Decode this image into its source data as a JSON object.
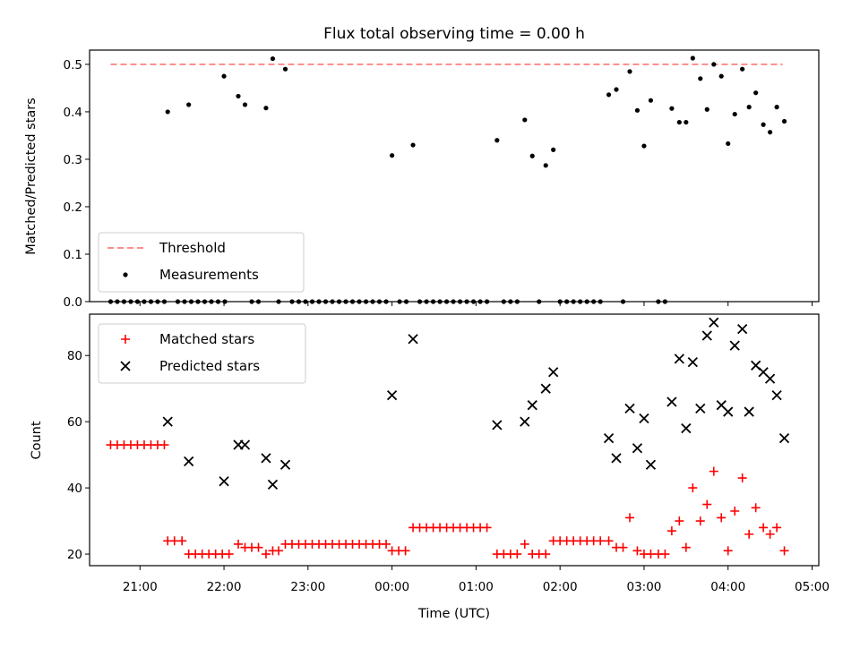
{
  "title": "Flux total observing time = 0.00 h",
  "chart_data": [
    {
      "type": "scatter",
      "ylabel": "Matched/Predicted stars",
      "xlabel": "",
      "ylim": [
        0,
        0.53
      ],
      "yticks": [
        "0.0",
        "0.1",
        "0.2",
        "0.3",
        "0.4",
        "0.5"
      ],
      "ytick_values": [
        0,
        0.1,
        0.2,
        0.3,
        0.4,
        0.5
      ],
      "xlim": [
        20.4,
        29.08
      ],
      "legend_position": "lower-left",
      "threshold": {
        "name": "Threshold",
        "value": 0.5,
        "x": [
          20.65,
          28.65
        ],
        "color": "#ff7f7f",
        "style": "dashed"
      },
      "series": [
        {
          "name": "Measurements",
          "color": "#000000",
          "marker": "dot",
          "points": [
            [
              20.65,
              0
            ],
            [
              20.73,
              0
            ],
            [
              20.81,
              0
            ],
            [
              20.89,
              0
            ],
            [
              20.97,
              0
            ],
            [
              21.05,
              0
            ],
            [
              21.13,
              0
            ],
            [
              21.21,
              0
            ],
            [
              21.29,
              0
            ],
            [
              21.33,
              0.4
            ],
            [
              21.45,
              0
            ],
            [
              21.53,
              0
            ],
            [
              21.58,
              0.415
            ],
            [
              21.61,
              0
            ],
            [
              21.69,
              0
            ],
            [
              21.77,
              0
            ],
            [
              21.85,
              0
            ],
            [
              21.93,
              0
            ],
            [
              22.0,
              0.475
            ],
            [
              22.01,
              0
            ],
            [
              22.17,
              0.433
            ],
            [
              22.25,
              0.415
            ],
            [
              22.33,
              0
            ],
            [
              22.41,
              0
            ],
            [
              22.5,
              0.408
            ],
            [
              22.58,
              0.512
            ],
            [
              22.73,
              0.49
            ],
            [
              22.65,
              0
            ],
            [
              22.81,
              0
            ],
            [
              22.89,
              0
            ],
            [
              22.97,
              0
            ],
            [
              23.05,
              0
            ],
            [
              23.13,
              0
            ],
            [
              23.21,
              0
            ],
            [
              23.29,
              0
            ],
            [
              23.37,
              0
            ],
            [
              23.45,
              0
            ],
            [
              23.53,
              0
            ],
            [
              23.61,
              0
            ],
            [
              23.69,
              0
            ],
            [
              23.77,
              0
            ],
            [
              23.85,
              0
            ],
            [
              23.93,
              0
            ],
            [
              24.0,
              0.308
            ],
            [
              24.09,
              0
            ],
            [
              24.17,
              0
            ],
            [
              24.25,
              0.33
            ],
            [
              24.33,
              0
            ],
            [
              24.41,
              0
            ],
            [
              24.49,
              0
            ],
            [
              24.57,
              0
            ],
            [
              24.65,
              0
            ],
            [
              24.73,
              0
            ],
            [
              24.81,
              0
            ],
            [
              24.89,
              0
            ],
            [
              24.97,
              0
            ],
            [
              25.05,
              0
            ],
            [
              25.13,
              0
            ],
            [
              25.25,
              0.34
            ],
            [
              25.33,
              0
            ],
            [
              25.41,
              0
            ],
            [
              25.49,
              0
            ],
            [
              25.58,
              0.383
            ],
            [
              25.67,
              0.307
            ],
            [
              25.75,
              0
            ],
            [
              25.83,
              0.287
            ],
            [
              25.92,
              0.32
            ],
            [
              26.0,
              0
            ],
            [
              26.08,
              0
            ],
            [
              26.16,
              0
            ],
            [
              26.24,
              0
            ],
            [
              26.32,
              0
            ],
            [
              26.4,
              0
            ],
            [
              26.48,
              0
            ],
            [
              26.58,
              0.436
            ],
            [
              26.67,
              0.447
            ],
            [
              26.75,
              0
            ],
            [
              26.83,
              0.485
            ],
            [
              26.92,
              0.403
            ],
            [
              27.0,
              0.328
            ],
            [
              27.08,
              0.424
            ],
            [
              27.17,
              0
            ],
            [
              27.25,
              0
            ],
            [
              27.33,
              0.407
            ],
            [
              27.42,
              0.378
            ],
            [
              27.5,
              0.378
            ],
            [
              27.58,
              0.513
            ],
            [
              27.67,
              0.47
            ],
            [
              27.75,
              0.405
            ],
            [
              27.83,
              0.5
            ],
            [
              27.92,
              0.475
            ],
            [
              28.0,
              0.333
            ],
            [
              28.08,
              0.395
            ],
            [
              28.17,
              0.49
            ],
            [
              28.25,
              0.41
            ],
            [
              28.33,
              0.44
            ],
            [
              28.42,
              0.373
            ],
            [
              28.5,
              0.357
            ],
            [
              28.58,
              0.41
            ],
            [
              28.67,
              0.38
            ]
          ]
        }
      ]
    },
    {
      "type": "scatter",
      "ylabel": "Count",
      "xlabel": "Time (UTC)",
      "ylim": [
        16.5,
        92.5
      ],
      "yticks": [
        "20",
        "40",
        "60",
        "80"
      ],
      "ytick_values": [
        20,
        40,
        60,
        80
      ],
      "xlim": [
        20.4,
        29.08
      ],
      "xticks": [
        "21:00",
        "22:00",
        "23:00",
        "00:00",
        "01:00",
        "02:00",
        "03:00",
        "04:00",
        "05:00"
      ],
      "xtick_values": [
        21,
        22,
        23,
        24,
        25,
        26,
        27,
        28,
        29
      ],
      "legend_position": "upper-left",
      "series": [
        {
          "name": "Matched stars",
          "color": "#ff0000",
          "marker": "plus",
          "points": [
            [
              20.65,
              53
            ],
            [
              20.73,
              53
            ],
            [
              20.81,
              53
            ],
            [
              20.89,
              53
            ],
            [
              20.97,
              53
            ],
            [
              21.05,
              53
            ],
            [
              21.13,
              53
            ],
            [
              21.21,
              53
            ],
            [
              21.29,
              53
            ],
            [
              21.33,
              24
            ],
            [
              21.41,
              24
            ],
            [
              21.5,
              24
            ],
            [
              21.58,
              20
            ],
            [
              21.66,
              20
            ],
            [
              21.74,
              20
            ],
            [
              21.82,
              20
            ],
            [
              21.9,
              20
            ],
            [
              21.98,
              20
            ],
            [
              22.06,
              20
            ],
            [
              22.17,
              23
            ],
            [
              22.25,
              22
            ],
            [
              22.33,
              22
            ],
            [
              22.41,
              22
            ],
            [
              22.5,
              20
            ],
            [
              22.58,
              21
            ],
            [
              22.65,
              21
            ],
            [
              22.73,
              23
            ],
            [
              22.81,
              23
            ],
            [
              22.89,
              23
            ],
            [
              22.97,
              23
            ],
            [
              23.05,
              23
            ],
            [
              23.13,
              23
            ],
            [
              23.21,
              23
            ],
            [
              23.29,
              23
            ],
            [
              23.37,
              23
            ],
            [
              23.45,
              23
            ],
            [
              23.53,
              23
            ],
            [
              23.61,
              23
            ],
            [
              23.69,
              23
            ],
            [
              23.77,
              23
            ],
            [
              23.85,
              23
            ],
            [
              23.93,
              23
            ],
            [
              24.0,
              21
            ],
            [
              24.08,
              21
            ],
            [
              24.16,
              21
            ],
            [
              24.25,
              28
            ],
            [
              24.33,
              28
            ],
            [
              24.41,
              28
            ],
            [
              24.49,
              28
            ],
            [
              24.57,
              28
            ],
            [
              24.65,
              28
            ],
            [
              24.73,
              28
            ],
            [
              24.81,
              28
            ],
            [
              24.89,
              28
            ],
            [
              24.97,
              28
            ],
            [
              25.05,
              28
            ],
            [
              25.13,
              28
            ],
            [
              25.25,
              20
            ],
            [
              25.33,
              20
            ],
            [
              25.41,
              20
            ],
            [
              25.49,
              20
            ],
            [
              25.58,
              23
            ],
            [
              25.67,
              20
            ],
            [
              25.75,
              20
            ],
            [
              25.83,
              20
            ],
            [
              25.92,
              24
            ],
            [
              26.0,
              24
            ],
            [
              26.08,
              24
            ],
            [
              26.16,
              24
            ],
            [
              26.24,
              24
            ],
            [
              26.32,
              24
            ],
            [
              26.4,
              24
            ],
            [
              26.48,
              24
            ],
            [
              26.58,
              24
            ],
            [
              26.67,
              22
            ],
            [
              26.75,
              22
            ],
            [
              26.83,
              31
            ],
            [
              26.92,
              21
            ],
            [
              27.0,
              20
            ],
            [
              27.08,
              20
            ],
            [
              27.17,
              20
            ],
            [
              27.25,
              20
            ],
            [
              27.33,
              27
            ],
            [
              27.42,
              30
            ],
            [
              27.5,
              22
            ],
            [
              27.58,
              40
            ],
            [
              27.67,
              30
            ],
            [
              27.75,
              35
            ],
            [
              27.83,
              45
            ],
            [
              27.92,
              31
            ],
            [
              28.0,
              21
            ],
            [
              28.08,
              33
            ],
            [
              28.17,
              43
            ],
            [
              28.25,
              26
            ],
            [
              28.33,
              34
            ],
            [
              28.42,
              28
            ],
            [
              28.5,
              26
            ],
            [
              28.58,
              28
            ],
            [
              28.67,
              21
            ]
          ]
        },
        {
          "name": "Predicted stars",
          "color": "#000000",
          "marker": "x",
          "points": [
            [
              21.33,
              60
            ],
            [
              21.58,
              48
            ],
            [
              22.0,
              42
            ],
            [
              22.17,
              53
            ],
            [
              22.25,
              53
            ],
            [
              22.5,
              49
            ],
            [
              22.58,
              41
            ],
            [
              22.73,
              47
            ],
            [
              24.0,
              68
            ],
            [
              24.25,
              85
            ],
            [
              25.25,
              59
            ],
            [
              25.58,
              60
            ],
            [
              25.67,
              65
            ],
            [
              25.83,
              70
            ],
            [
              25.92,
              75
            ],
            [
              26.58,
              55
            ],
            [
              26.67,
              49
            ],
            [
              26.83,
              64
            ],
            [
              26.92,
              52
            ],
            [
              27.0,
              61
            ],
            [
              27.08,
              47
            ],
            [
              27.33,
              66
            ],
            [
              27.42,
              79
            ],
            [
              27.5,
              58
            ],
            [
              27.58,
              78
            ],
            [
              27.67,
              64
            ],
            [
              27.75,
              86
            ],
            [
              27.83,
              90
            ],
            [
              27.92,
              65
            ],
            [
              28.0,
              63
            ],
            [
              28.08,
              83
            ],
            [
              28.17,
              88
            ],
            [
              28.25,
              63
            ],
            [
              28.33,
              77
            ],
            [
              28.42,
              75
            ],
            [
              28.5,
              73
            ],
            [
              28.58,
              68
            ],
            [
              28.67,
              55
            ]
          ]
        }
      ]
    }
  ]
}
